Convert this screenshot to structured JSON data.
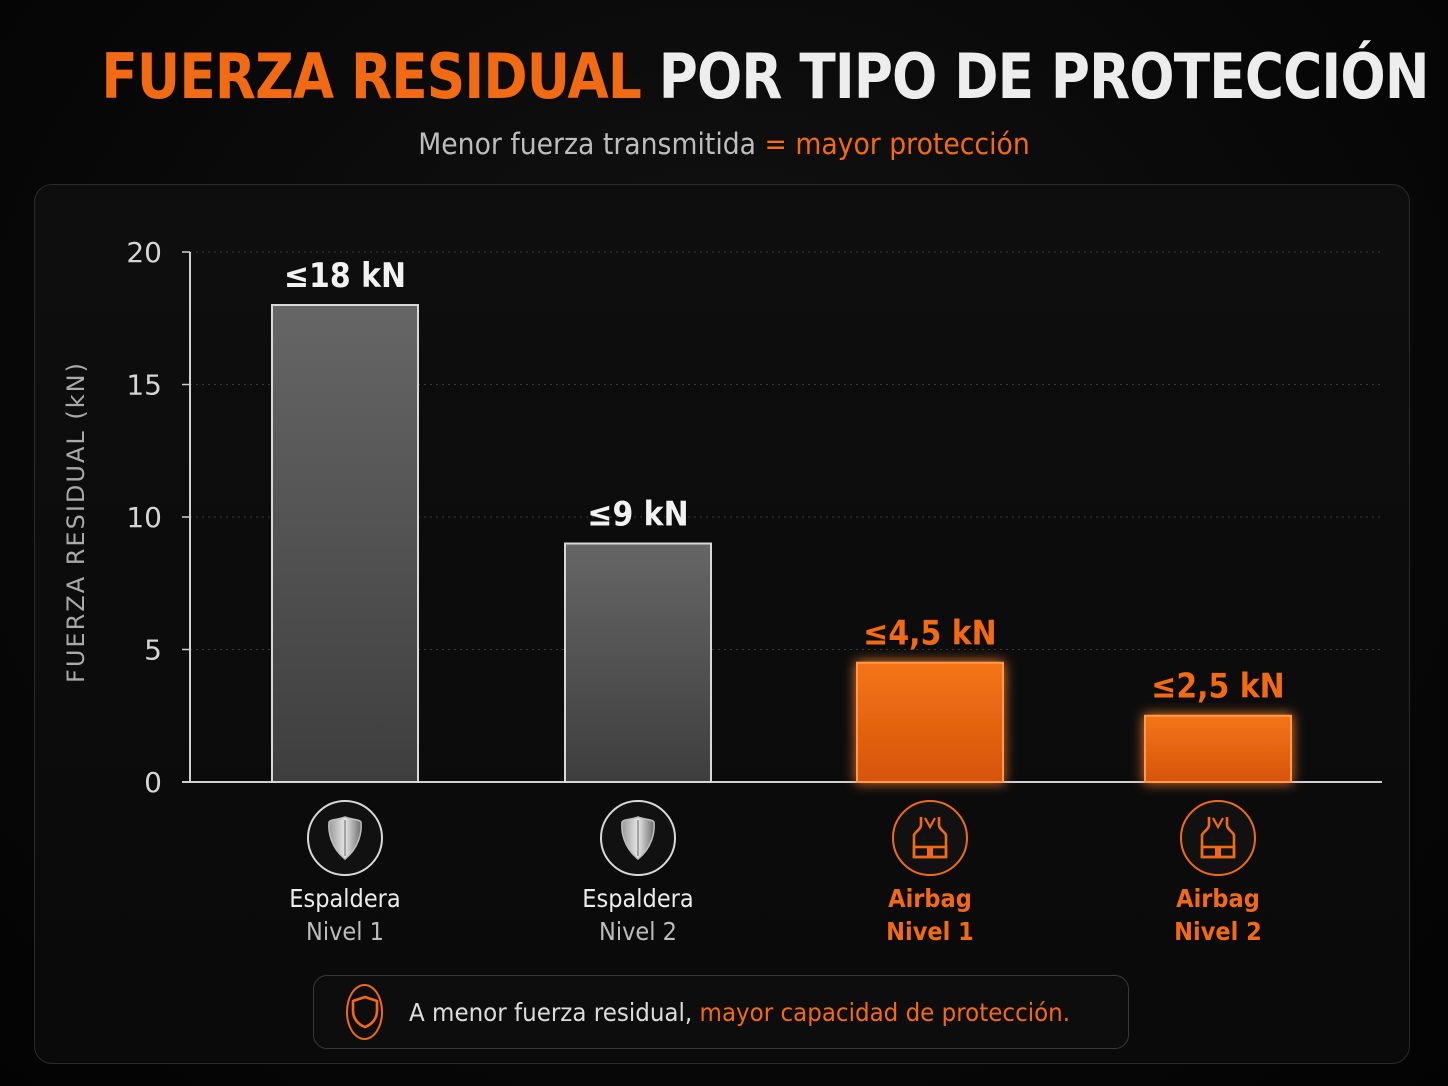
{
  "header": {
    "title_accent": "FUERZA RESIDUAL",
    "title_rest": "POR TIPO DE PROTECCIÓN",
    "subtitle_main": "Menor fuerza transmitida",
    "subtitle_accent": "= mayor protección"
  },
  "chart_data": {
    "type": "bar",
    "title": "FUERZA RESIDUAL POR TIPO DE PROTECCIÓN",
    "subtitle": "Menor fuerza transmitida = mayor protección",
    "xlabel": "",
    "ylabel": "FUERZA RESIDUAL (kN)",
    "ylim": [
      0,
      20
    ],
    "yticks": [
      "0",
      "5",
      "10",
      "15",
      "20"
    ],
    "grid": true,
    "categories": [
      "Espaldera Nivel 1",
      "Espaldera Nivel 2",
      "Airbag Nivel 1",
      "Airbag Nivel 2"
    ],
    "values": [
      18,
      9,
      4.5,
      2.5
    ],
    "value_labels": [
      "≤18 kN",
      "≤9 kN",
      "≤4,5 kN",
      "≤2,5 kN"
    ],
    "bar_colors": [
      "#5a5a5a",
      "#5a5a5a",
      "#f26a12",
      "#f26a12"
    ]
  },
  "categories_display": [
    {
      "line1": "Espaldera",
      "line2": "Nivel 1",
      "icon": "shield-icon",
      "color": "#d9d9d9"
    },
    {
      "line1": "Espaldera",
      "line2": "Nivel 2",
      "icon": "shield-icon",
      "color": "#d9d9d9"
    },
    {
      "line1": "Airbag",
      "line2": "Nivel 1",
      "icon": "airbag-vest-icon",
      "color": "#f26a12"
    },
    {
      "line1": "Airbag",
      "line2": "Nivel 2",
      "icon": "airbag-vest-icon",
      "color": "#f26a12"
    }
  ],
  "footer": {
    "text_main": "A menor fuerza residual,",
    "text_accent": "mayor capacidad de protección.",
    "icon": "shield-outline-icon"
  },
  "colors": {
    "accent": "#f26a12",
    "gray_bar": "#5a5a5a",
    "background": "#0a0a0a"
  }
}
